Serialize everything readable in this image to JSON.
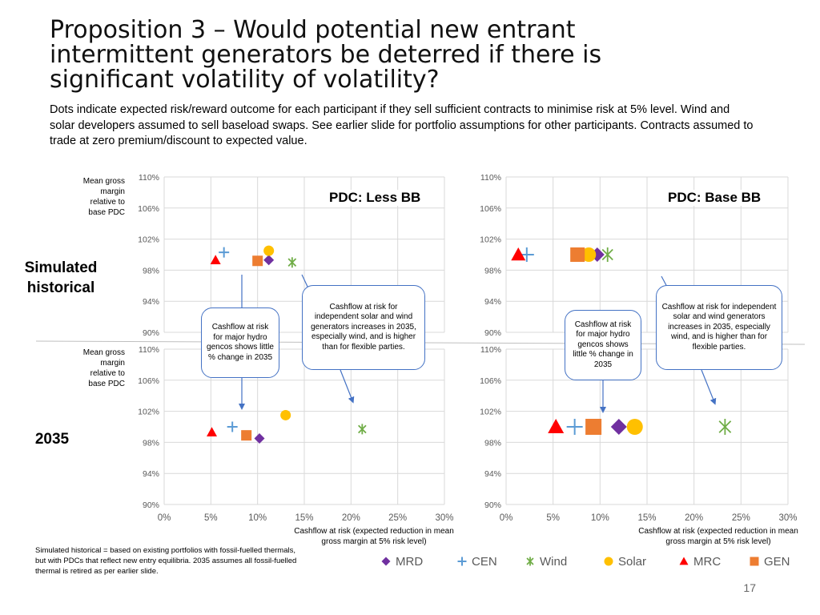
{
  "slide": {
    "title": "Proposition 3 – Would potential new entrant intermittent generators be deterred if there is significant volatility of volatility?",
    "subtitle": "Dots indicate expected risk/reward outcome for each participant if they sell sufficient contracts to minimise risk at 5% level. Wind and solar developers assumed to sell baseload swaps.  See earlier slide for portfolio assumptions for other participants. Contracts assumed to trade at zero premium/discount to expected value.",
    "row_labels": {
      "historical": "Simulated historical",
      "future": "2035"
    },
    "y_axis_label": "Mean gross margin relative to base PDC",
    "x_axis_label": "Cashflow at risk (expected reduction in mean gross margin at 5% risk level)",
    "footnote": "Simulated historical = based on existing portfolios with fossil-fuelled thermals, but with PDCs that reflect new entry equilibria. 2035 assumes all fossil-fuelled thermal is retired as per earlier slide.",
    "page_number": "17",
    "callouts": {
      "hydro": "Cashflow at risk for major hydro gencos shows little % change in 2035",
      "intermittent": "Cashflow at risk for independent solar and wind generators increases in 2035, especially wind, and is higher than for flexible parties."
    },
    "panel_titles": {
      "less_bb": "PDC: Less BB",
      "base_bb": "PDC: Base BB"
    }
  },
  "colors": {
    "MRD": "#7030a0",
    "CEN": "#5b9bd5",
    "Wind": "#70ad47",
    "Solar": "#ffc000",
    "MRC": "#ff0000",
    "GEN": "#ed7d31",
    "grid": "#d9d9d9",
    "axis_text": "#595959",
    "arrow": "#4472c4"
  },
  "chart_data": [
    {
      "type": "scatter",
      "panel": "Simulated historical – PDC: Less BB",
      "title": "PDC: Less BB",
      "xlim": [
        0,
        0.3
      ],
      "ylim": [
        0.9,
        1.1
      ],
      "x_ticks": [
        "0%",
        "5%",
        "10%",
        "15%",
        "20%",
        "25%",
        "30%"
      ],
      "y_ticks": [
        "90%",
        "94%",
        "98%",
        "102%",
        "106%",
        "110%"
      ],
      "show_x_ticks": false,
      "series": [
        {
          "name": "MRD",
          "x": 0.112,
          "y": 0.993
        },
        {
          "name": "CEN",
          "x": 0.064,
          "y": 1.003
        },
        {
          "name": "Wind",
          "x": 0.137,
          "y": 0.99
        },
        {
          "name": "Solar",
          "x": 0.112,
          "y": 1.005
        },
        {
          "name": "MRC",
          "x": 0.055,
          "y": 0.993
        },
        {
          "name": "GEN",
          "x": 0.1,
          "y": 0.992
        }
      ]
    },
    {
      "type": "scatter",
      "panel": "Simulated historical – PDC: Base BB",
      "title": "PDC: Base BB",
      "xlim": [
        0,
        0.3
      ],
      "ylim": [
        0.9,
        1.1
      ],
      "x_ticks": [
        "0%",
        "5%",
        "10%",
        "15%",
        "20%",
        "25%",
        "30%"
      ],
      "y_ticks": [
        "90%",
        "94%",
        "98%",
        "102%",
        "106%",
        "110%"
      ],
      "show_x_ticks": false,
      "series": [
        {
          "name": "MRD",
          "x": 0.097,
          "y": 1.0
        },
        {
          "name": "CEN",
          "x": 0.022,
          "y": 1.0
        },
        {
          "name": "Wind",
          "x": 0.108,
          "y": 1.0
        },
        {
          "name": "Solar",
          "x": 0.088,
          "y": 1.0
        },
        {
          "name": "MRC",
          "x": 0.013,
          "y": 1.0
        },
        {
          "name": "GEN",
          "x": 0.076,
          "y": 1.0
        }
      ]
    },
    {
      "type": "scatter",
      "panel": "2035 – PDC: Less BB",
      "xlim": [
        0,
        0.3
      ],
      "ylim": [
        0.9,
        1.1
      ],
      "x_ticks": [
        "0%",
        "5%",
        "10%",
        "15%",
        "20%",
        "25%",
        "30%"
      ],
      "y_ticks": [
        "90%",
        "94%",
        "98%",
        "102%",
        "106%",
        "110%"
      ],
      "show_x_ticks": true,
      "series": [
        {
          "name": "MRD",
          "x": 0.102,
          "y": 0.985
        },
        {
          "name": "CEN",
          "x": 0.073,
          "y": 1.0
        },
        {
          "name": "Wind",
          "x": 0.212,
          "y": 0.997
        },
        {
          "name": "Solar",
          "x": 0.13,
          "y": 1.015
        },
        {
          "name": "MRC",
          "x": 0.051,
          "y": 0.993
        },
        {
          "name": "GEN",
          "x": 0.088,
          "y": 0.989
        }
      ]
    },
    {
      "type": "scatter",
      "panel": "2035 – PDC: Base BB",
      "xlim": [
        0,
        0.3
      ],
      "ylim": [
        0.9,
        1.1
      ],
      "x_ticks": [
        "0%",
        "5%",
        "10%",
        "15%",
        "20%",
        "25%",
        "30%"
      ],
      "y_ticks": [
        "90%",
        "94%",
        "98%",
        "102%",
        "106%",
        "110%"
      ],
      "show_x_ticks": true,
      "series": [
        {
          "name": "MRD",
          "x": 0.12,
          "y": 1.0
        },
        {
          "name": "CEN",
          "x": 0.073,
          "y": 1.0
        },
        {
          "name": "Wind",
          "x": 0.233,
          "y": 1.0
        },
        {
          "name": "Solar",
          "x": 0.137,
          "y": 1.0
        },
        {
          "name": "MRC",
          "x": 0.053,
          "y": 1.0
        },
        {
          "name": "GEN",
          "x": 0.093,
          "y": 1.0
        }
      ]
    }
  ],
  "legend": {
    "placement": "bottom",
    "items": [
      {
        "name": "MRD",
        "marker": "diamond"
      },
      {
        "name": "CEN",
        "marker": "plus"
      },
      {
        "name": "Wind",
        "marker": "asterisk"
      },
      {
        "name": "Solar",
        "marker": "circle"
      },
      {
        "name": "MRC",
        "marker": "triangle"
      },
      {
        "name": "GEN",
        "marker": "square"
      }
    ]
  }
}
